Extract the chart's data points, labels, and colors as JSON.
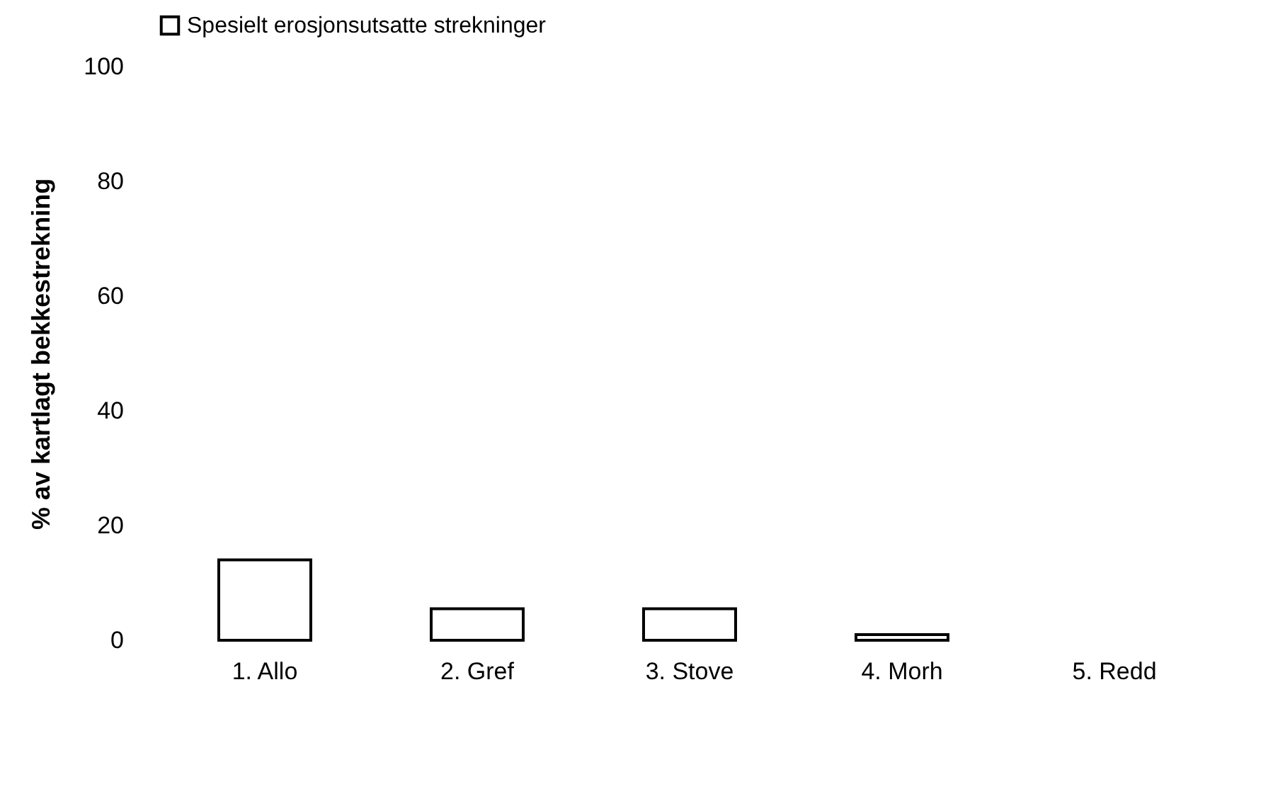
{
  "chart_data": {
    "type": "bar",
    "ylabel": "% av kartlagt bekkestrekning",
    "categories": [
      "1. Allo",
      "2. Gref",
      "3. Stove",
      "4. Morh",
      "5. Redd"
    ],
    "series": [
      {
        "name": "Spesielt erosjonsutsatte strekninger",
        "color": "#ffffff",
        "values": [
          14,
          5.5,
          5.5,
          1,
          null
        ]
      }
    ],
    "ylim": [
      0,
      100
    ],
    "yticks": [
      0,
      20,
      40,
      60,
      80,
      100
    ],
    "grid": false,
    "legend": "top"
  }
}
